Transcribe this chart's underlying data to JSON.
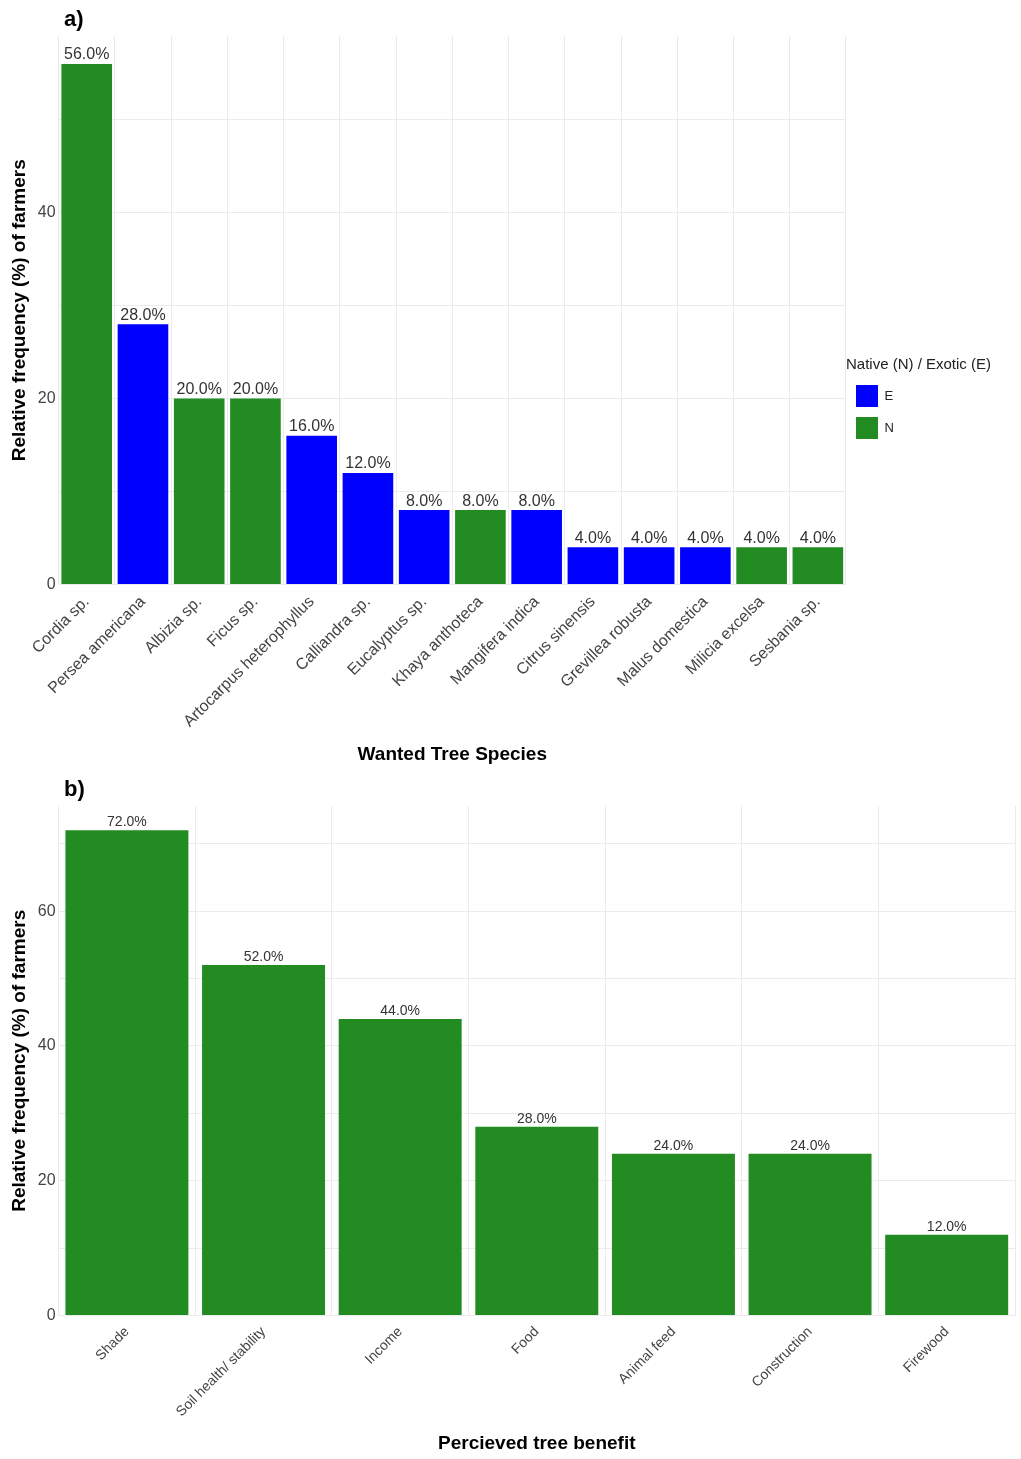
{
  "chart_data": [
    {
      "type": "bar",
      "title": "a)",
      "xlabel": "Wanted Tree Species",
      "ylabel": "Relative frequency (%) of farmers",
      "legend_title": "Native (N) / Exotic (E)",
      "categories": [
        "Cordia sp.",
        "Persea americana",
        "Albizia sp.",
        "Ficus sp.",
        "Artocarpus heterophyllus",
        "Calliandra sp.",
        "Eucalyptus sp.",
        "Khaya anthoteca",
        "Mangifera indica",
        "Citrus sinensis",
        "Grevillea robusta",
        "Malus domestica",
        "Milicia excelsa",
        "Sesbania sp."
      ],
      "series": [
        {
          "name": "E",
          "color": "#0000ff",
          "values": [
            null,
            28,
            null,
            null,
            16,
            12,
            8,
            null,
            8,
            4,
            4,
            4,
            null,
            null
          ],
          "value_labels": [
            null,
            "28.0%",
            null,
            null,
            "16.0%",
            "12.0%",
            "8.0%",
            null,
            "8.0%",
            "4.0%",
            "4.0%",
            "4.0%",
            null,
            null
          ]
        },
        {
          "name": "N",
          "color": "#228b22",
          "values": [
            56,
            null,
            20,
            20,
            null,
            null,
            null,
            8,
            null,
            null,
            null,
            null,
            4,
            4
          ],
          "value_labels": [
            "56.0%",
            null,
            "20.0%",
            "20.0%",
            null,
            null,
            null,
            "8.0%",
            null,
            null,
            null,
            null,
            "4.0%",
            "4.0%"
          ]
        }
      ],
      "ylim": [
        0,
        59
      ],
      "yticks": [
        0,
        {
          "value": 10,
          "label": null
        },
        20,
        {
          "value": 30,
          "label": null
        },
        40,
        {
          "value": 50,
          "label": null
        }
      ],
      "grid": true,
      "legend": "right"
    },
    {
      "type": "bar",
      "title": "b)",
      "xlabel": "Percieved tree benefit",
      "ylabel": "Relative frequency (%) of farmers",
      "categories": [
        "Shade",
        "Soil health/ stability",
        "Income",
        "Food",
        "Animal feed",
        "Construction",
        "Firewood"
      ],
      "series": [
        {
          "color": "#228b22",
          "values": [
            72,
            52,
            44,
            28,
            24,
            24,
            12
          ],
          "value_labels": [
            "72.0%",
            "52.0%",
            "44.0%",
            "28.0%",
            "24.0%",
            "24.0%",
            "12.0%"
          ]
        }
      ],
      "ylim": [
        0,
        75.6
      ],
      "yticks": [
        0,
        {
          "value": 10,
          "label": null
        },
        20,
        {
          "value": 30,
          "label": null
        },
        40,
        {
          "value": 50,
          "label": null
        },
        60,
        {
          "value": 70,
          "label": null
        }
      ],
      "grid": true
    }
  ]
}
